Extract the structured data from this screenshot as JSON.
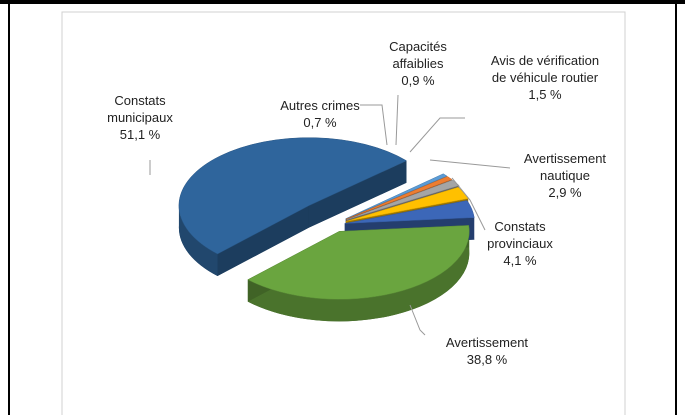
{
  "chart_data": {
    "type": "pie",
    "categories": [
      "Avertissement",
      "Constats municipaux",
      "Autres crimes",
      "Capacités affaiblies",
      "Avis de vérification de véhicule routier",
      "Avertissement nautique",
      "Constats provinciaux"
    ],
    "values": [
      38.8,
      51.1,
      0.7,
      0.9,
      1.5,
      2.9,
      4.1
    ],
    "value_labels": [
      "38,8 %",
      "51,1 %",
      "0,7 %",
      "0,9 %",
      "1,5 %",
      "2,9 %",
      "4,1 %"
    ],
    "colors": [
      "#6aa53f",
      "#2f659c",
      "#5b9bd5",
      "#ed7d31",
      "#a5a5a5",
      "#ffc000",
      "#3c67b8"
    ],
    "legend": false
  }
}
